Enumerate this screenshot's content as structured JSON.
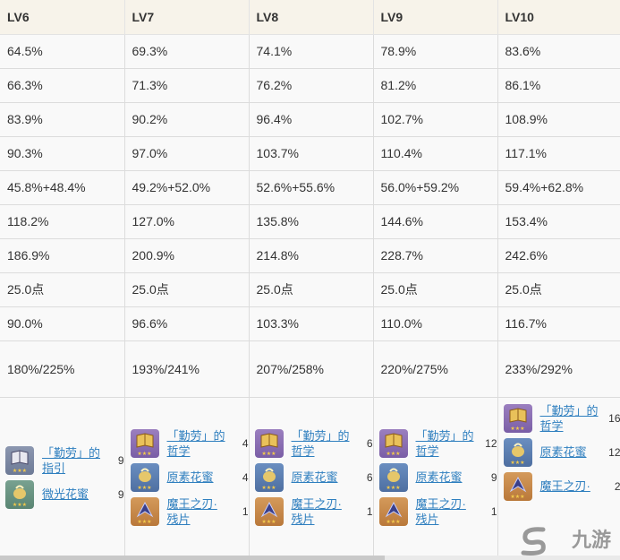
{
  "headers": [
    "LV6",
    "LV7",
    "LV8",
    "LV9",
    "LV10"
  ],
  "rows": [
    [
      "64.5%",
      "69.3%",
      "74.1%",
      "78.9%",
      "83.6%"
    ],
    [
      "66.3%",
      "71.3%",
      "76.2%",
      "81.2%",
      "86.1%"
    ],
    [
      "83.9%",
      "90.2%",
      "96.4%",
      "102.7%",
      "108.9%"
    ],
    [
      "90.3%",
      "97.0%",
      "103.7%",
      "110.4%",
      "117.1%"
    ],
    [
      "45.8%+48.4%",
      "49.2%+52.0%",
      "52.6%+55.6%",
      "56.0%+59.2%",
      "59.4%+62.8%"
    ],
    [
      "118.2%",
      "127.0%",
      "135.8%",
      "144.6%",
      "153.4%"
    ],
    [
      "186.9%",
      "200.9%",
      "214.8%",
      "228.7%",
      "242.6%"
    ],
    [
      "25.0点",
      "25.0点",
      "25.0点",
      "25.0点",
      "25.0点"
    ],
    [
      "90.0%",
      "96.6%",
      "103.3%",
      "110.0%",
      "116.7%"
    ],
    [
      "180%/225%",
      "193%/241%",
      "207%/258%",
      "220%/275%",
      "233%/292%"
    ]
  ],
  "materials": [
    [
      {
        "name": "「勤劳」的指引",
        "count": "9",
        "color": "grey",
        "icon": "guide-book-icon"
      },
      {
        "name": "微光花蜜",
        "count": "9",
        "color": "green",
        "icon": "nectar-icon"
      }
    ],
    [
      {
        "name": "「勤劳」的哲学",
        "count": "4",
        "color": "purple",
        "icon": "philosophy-book-icon"
      },
      {
        "name": "原素花蜜",
        "count": "4",
        "color": "blue",
        "icon": "nectar-icon"
      },
      {
        "name": "魔王之刃·残片",
        "count": "1",
        "color": "orange",
        "icon": "blade-shard-icon"
      }
    ],
    [
      {
        "name": "「勤劳」的哲学",
        "count": "6",
        "color": "purple",
        "icon": "philosophy-book-icon"
      },
      {
        "name": "原素花蜜",
        "count": "6",
        "color": "blue",
        "icon": "nectar-icon"
      },
      {
        "name": "魔王之刃·残片",
        "count": "1",
        "color": "orange",
        "icon": "blade-shard-icon"
      }
    ],
    [
      {
        "name": "「勤劳」的哲学",
        "count": "12",
        "color": "purple",
        "icon": "philosophy-book-icon"
      },
      {
        "name": "原素花蜜",
        "count": "9",
        "color": "blue",
        "icon": "nectar-icon"
      },
      {
        "name": "魔王之刃·残片",
        "count": "1",
        "color": "orange",
        "icon": "blade-shard-icon"
      }
    ],
    [
      {
        "name": "「勤劳」的哲学",
        "count": "16",
        "color": "purple",
        "icon": "philosophy-book-icon"
      },
      {
        "name": "原素花蜜",
        "count": "12",
        "color": "blue",
        "icon": "nectar-icon"
      },
      {
        "name": "魔王之刃·",
        "count": "2",
        "color": "orange",
        "icon": "blade-shard-icon"
      }
    ]
  ],
  "watermark": "九游"
}
